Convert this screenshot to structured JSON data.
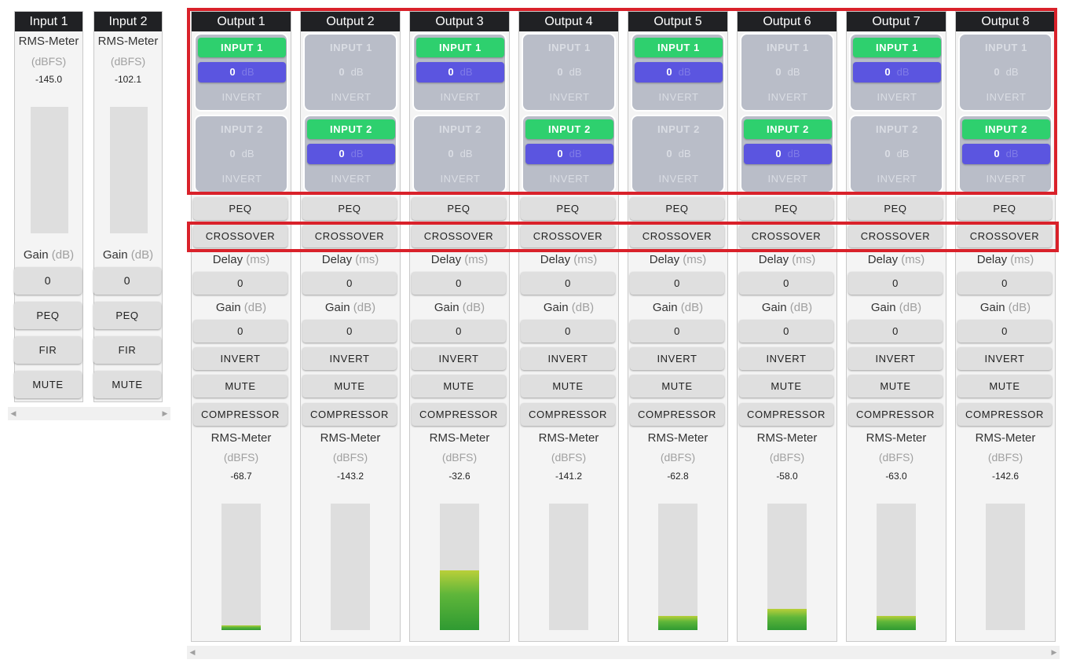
{
  "inputs": [
    {
      "title": "Input 1",
      "meter_label": "RMS-Meter",
      "meter_unit": "(dBFS)",
      "meter_value": "-145.0",
      "gain_label": "Gain",
      "gain_unit": "(dB)",
      "gain_value": "0",
      "peq": "PEQ",
      "fir": "FIR",
      "mute": "MUTE",
      "level": 0
    },
    {
      "title": "Input 2",
      "meter_label": "RMS-Meter",
      "meter_unit": "(dBFS)",
      "meter_value": "-102.1",
      "gain_label": "Gain",
      "gain_unit": "(dB)",
      "gain_value": "0",
      "peq": "PEQ",
      "fir": "FIR",
      "mute": "MUTE",
      "level": 0
    }
  ],
  "outputs": [
    {
      "title": "Output 1",
      "route": [
        {
          "label": "INPUT 1",
          "gain": "0",
          "unit": "dB",
          "invert": "INVERT",
          "active": true
        },
        {
          "label": "INPUT 2",
          "gain": "0",
          "unit": "dB",
          "invert": "INVERT",
          "active": false
        }
      ],
      "peq": "PEQ",
      "crossover": "CROSSOVER",
      "delay_label": "Delay",
      "delay_unit": "(ms)",
      "delay_value": "0",
      "gain_label": "Gain",
      "gain_unit": "(dB)",
      "gain_value": "0",
      "invert": "INVERT",
      "mute": "MUTE",
      "compressor": "COMPRESSOR",
      "meter_label": "RMS-Meter",
      "meter_unit": "(dBFS)",
      "meter_value": "-68.7",
      "level": 0.04
    },
    {
      "title": "Output 2",
      "route": [
        {
          "label": "INPUT 1",
          "gain": "0",
          "unit": "dB",
          "invert": "INVERT",
          "active": false
        },
        {
          "label": "INPUT 2",
          "gain": "0",
          "unit": "dB",
          "invert": "INVERT",
          "active": true
        }
      ],
      "peq": "PEQ",
      "crossover": "CROSSOVER",
      "delay_label": "Delay",
      "delay_unit": "(ms)",
      "delay_value": "0",
      "gain_label": "Gain",
      "gain_unit": "(dB)",
      "gain_value": "0",
      "invert": "INVERT",
      "mute": "MUTE",
      "compressor": "COMPRESSOR",
      "meter_label": "RMS-Meter",
      "meter_unit": "(dBFS)",
      "meter_value": "-143.2",
      "level": 0
    },
    {
      "title": "Output 3",
      "route": [
        {
          "label": "INPUT 1",
          "gain": "0",
          "unit": "dB",
          "invert": "INVERT",
          "active": true
        },
        {
          "label": "INPUT 2",
          "gain": "0",
          "unit": "dB",
          "invert": "INVERT",
          "active": false
        }
      ],
      "peq": "PEQ",
      "crossover": "CROSSOVER",
      "delay_label": "Delay",
      "delay_unit": "(ms)",
      "delay_value": "0",
      "gain_label": "Gain",
      "gain_unit": "(dB)",
      "gain_value": "0",
      "invert": "INVERT",
      "mute": "MUTE",
      "compressor": "COMPRESSOR",
      "meter_label": "RMS-Meter",
      "meter_unit": "(dBFS)",
      "meter_value": "-32.6",
      "level": 0.47
    },
    {
      "title": "Output 4",
      "route": [
        {
          "label": "INPUT 1",
          "gain": "0",
          "unit": "dB",
          "invert": "INVERT",
          "active": false
        },
        {
          "label": "INPUT 2",
          "gain": "0",
          "unit": "dB",
          "invert": "INVERT",
          "active": true
        }
      ],
      "peq": "PEQ",
      "crossover": "CROSSOVER",
      "delay_label": "Delay",
      "delay_unit": "(ms)",
      "delay_value": "0",
      "gain_label": "Gain",
      "gain_unit": "(dB)",
      "gain_value": "0",
      "invert": "INVERT",
      "mute": "MUTE",
      "compressor": "COMPRESSOR",
      "meter_label": "RMS-Meter",
      "meter_unit": "(dBFS)",
      "meter_value": "-141.2",
      "level": 0
    },
    {
      "title": "Output 5",
      "route": [
        {
          "label": "INPUT 1",
          "gain": "0",
          "unit": "dB",
          "invert": "INVERT",
          "active": true
        },
        {
          "label": "INPUT 2",
          "gain": "0",
          "unit": "dB",
          "invert": "INVERT",
          "active": false
        }
      ],
      "peq": "PEQ",
      "crossover": "CROSSOVER",
      "delay_label": "Delay",
      "delay_unit": "(ms)",
      "delay_value": "0",
      "gain_label": "Gain",
      "gain_unit": "(dB)",
      "gain_value": "0",
      "invert": "INVERT",
      "mute": "MUTE",
      "compressor": "COMPRESSOR",
      "meter_label": "RMS-Meter",
      "meter_unit": "(dBFS)",
      "meter_value": "-62.8",
      "level": 0.11
    },
    {
      "title": "Output 6",
      "route": [
        {
          "label": "INPUT 1",
          "gain": "0",
          "unit": "dB",
          "invert": "INVERT",
          "active": false
        },
        {
          "label": "INPUT 2",
          "gain": "0",
          "unit": "dB",
          "invert": "INVERT",
          "active": true
        }
      ],
      "peq": "PEQ",
      "crossover": "CROSSOVER",
      "delay_label": "Delay",
      "delay_unit": "(ms)",
      "delay_value": "0",
      "gain_label": "Gain",
      "gain_unit": "(dB)",
      "gain_value": "0",
      "invert": "INVERT",
      "mute": "MUTE",
      "compressor": "COMPRESSOR",
      "meter_label": "RMS-Meter",
      "meter_unit": "(dBFS)",
      "meter_value": "-58.0",
      "level": 0.17
    },
    {
      "title": "Output 7",
      "route": [
        {
          "label": "INPUT 1",
          "gain": "0",
          "unit": "dB",
          "invert": "INVERT",
          "active": true
        },
        {
          "label": "INPUT 2",
          "gain": "0",
          "unit": "dB",
          "invert": "INVERT",
          "active": false
        }
      ],
      "peq": "PEQ",
      "crossover": "CROSSOVER",
      "delay_label": "Delay",
      "delay_unit": "(ms)",
      "delay_value": "0",
      "gain_label": "Gain",
      "gain_unit": "(dB)",
      "gain_value": "0",
      "invert": "INVERT",
      "mute": "MUTE",
      "compressor": "COMPRESSOR",
      "meter_label": "RMS-Meter",
      "meter_unit": "(dBFS)",
      "meter_value": "-63.0",
      "level": 0.11
    },
    {
      "title": "Output 8",
      "route": [
        {
          "label": "INPUT 1",
          "gain": "0",
          "unit": "dB",
          "invert": "INVERT",
          "active": false
        },
        {
          "label": "INPUT 2",
          "gain": "0",
          "unit": "dB",
          "invert": "INVERT",
          "active": true
        }
      ],
      "peq": "PEQ",
      "crossover": "CROSSOVER",
      "delay_label": "Delay",
      "delay_unit": "(ms)",
      "delay_value": "0",
      "gain_label": "Gain",
      "gain_unit": "(dB)",
      "gain_value": "0",
      "invert": "INVERT",
      "mute": "MUTE",
      "compressor": "COMPRESSOR",
      "meter_label": "RMS-Meter",
      "meter_unit": "(dBFS)",
      "meter_value": "-142.6",
      "level": 0
    }
  ],
  "colors": {
    "header_bg": "#202124",
    "route_active": "#2ed06e",
    "gain_active": "#5b55e0",
    "route_box": "#b9bdc8",
    "highlight": "#d9212a",
    "button": "#dfdfdf"
  },
  "icons": {
    "scroll_left": "triangle-left-icon",
    "scroll_right": "triangle-right-icon"
  }
}
